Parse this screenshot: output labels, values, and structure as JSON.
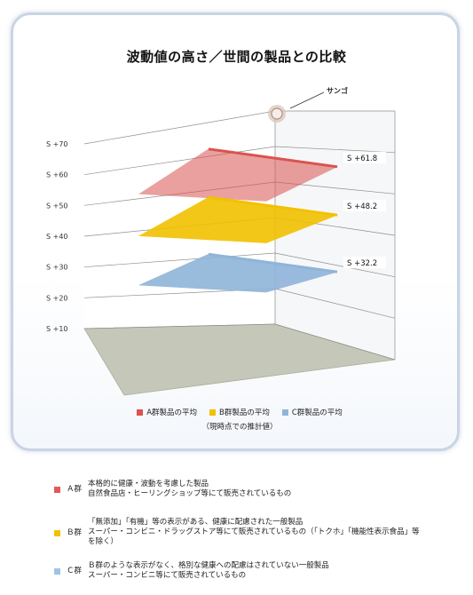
{
  "chart_data": {
    "type": "3d-plane",
    "title": "波動値の高さ／世間の製品との比較",
    "y_ticks": [
      "S +10",
      "S +20",
      "S +30",
      "S +40",
      "S +50",
      "S +60",
      "S +70"
    ],
    "ylim": [
      10,
      70
    ],
    "series": [
      {
        "name": "A群製品の平均",
        "value": 61.8,
        "label": "S +61.8",
        "color": "#d9534f"
      },
      {
        "name": "B群製品の平均",
        "value": 48.2,
        "label": "S +48.2",
        "color": "#f2c100"
      },
      {
        "name": "C群製品の平均",
        "value": 32.2,
        "label": "S +32.2",
        "color": "#8fb4d9"
      }
    ],
    "annotation": "サンゴ",
    "legend_note": "（現時点での推計値）"
  },
  "groups": [
    {
      "name": "Ａ群",
      "color": "#e05a5a",
      "lines": [
        "本格的に健康・波動を考慮した製品",
        "自然食品店・ヒーリングショップ等にて販売されているもの"
      ]
    },
    {
      "name": "Ｂ群",
      "color": "#f2c100",
      "lines": [
        "「無添加」「有機」等の表示がある、健康に配慮された一般製品",
        "スーパー・コンビニ・ドラッグストア等にて販売されているもの（「トクホ」「機能性表示食品」等",
        "を除く）"
      ]
    },
    {
      "name": "Ｃ群",
      "color": "#9fc2e6",
      "lines": [
        "Ｂ群のような表示がなく、格別な健康への配慮はされていない一般製品",
        "スーパー・コンビニ等にて販売されているもの"
      ]
    }
  ]
}
